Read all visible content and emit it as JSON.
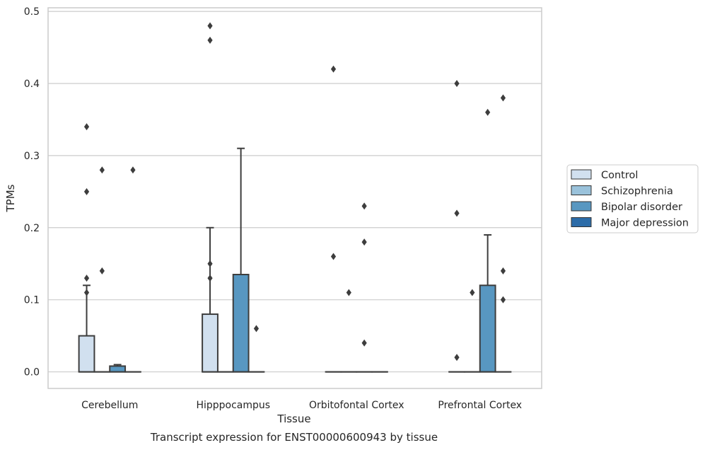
{
  "chart_data": {
    "type": "box",
    "title": "Transcript expression for ENST00000600943 by tissue",
    "xlabel": "Tissue",
    "ylabel": "TPMs",
    "ylim": [
      -0.023,
      0.505
    ],
    "yticks": [
      0.0,
      0.1,
      0.2,
      0.3,
      0.4,
      0.5
    ],
    "ytick_labels": [
      "0.0",
      "0.1",
      "0.2",
      "0.3",
      "0.4",
      "0.5"
    ],
    "categories": [
      "Cerebellum",
      "Hipppocampus",
      "Orbitofontal Cortex",
      "Prefrontal Cortex"
    ],
    "grid": true,
    "legend_position": "center-right",
    "series": [
      {
        "name": "Control",
        "color": "#d1e0ef",
        "boxes": [
          {
            "q1": 0,
            "median": 0,
            "q3": 0.05,
            "whisker_low": 0,
            "whisker_high": 0.12,
            "outliers": [
              0.34,
              0.25,
              0.13,
              0.11
            ]
          },
          {
            "q1": 0,
            "median": 0,
            "q3": 0.08,
            "whisker_low": 0,
            "whisker_high": 0.2,
            "outliers": [
              0.48,
              0.46,
              0.15,
              0.13
            ]
          },
          {
            "q1": 0,
            "median": 0,
            "q3": 0,
            "whisker_low": 0,
            "whisker_high": 0,
            "outliers": [
              0.42,
              0.16
            ]
          },
          {
            "q1": 0,
            "median": 0,
            "q3": 0,
            "whisker_low": 0,
            "whisker_high": 0,
            "outliers": [
              0.4,
              0.22,
              0.02
            ]
          }
        ]
      },
      {
        "name": "Schizophrenia",
        "color": "#9ac2db",
        "boxes": [
          {
            "q1": 0,
            "median": 0,
            "q3": 0,
            "whisker_low": 0,
            "whisker_high": 0,
            "outliers": [
              0.28,
              0.14
            ]
          },
          {
            "q1": 0,
            "median": 0,
            "q3": 0,
            "whisker_low": 0,
            "whisker_high": 0,
            "outliers": []
          },
          {
            "q1": 0,
            "median": 0,
            "q3": 0,
            "whisker_low": 0,
            "whisker_high": 0,
            "outliers": [
              0.11
            ]
          },
          {
            "q1": 0,
            "median": 0,
            "q3": 0,
            "whisker_low": 0,
            "whisker_high": 0,
            "outliers": [
              0.11
            ]
          }
        ]
      },
      {
        "name": "Bipolar disorder",
        "color": "#5897c1",
        "boxes": [
          {
            "q1": 0,
            "median": 0,
            "q3": 0.008,
            "whisker_low": 0,
            "whisker_high": 0.01,
            "outliers": []
          },
          {
            "q1": 0,
            "median": 0,
            "q3": 0.135,
            "whisker_low": 0,
            "whisker_high": 0.31,
            "outliers": []
          },
          {
            "q1": 0,
            "median": 0,
            "q3": 0,
            "whisker_low": 0,
            "whisker_high": 0,
            "outliers": [
              0.23,
              0.18,
              0.04
            ]
          },
          {
            "q1": 0,
            "median": 0,
            "q3": 0.12,
            "whisker_low": 0,
            "whisker_high": 0.19,
            "outliers": [
              0.36
            ]
          }
        ]
      },
      {
        "name": "Major depression",
        "color": "#2c6ca8",
        "boxes": [
          {
            "q1": 0,
            "median": 0,
            "q3": 0,
            "whisker_low": 0,
            "whisker_high": 0,
            "outliers": [
              0.28
            ]
          },
          {
            "q1": 0,
            "median": 0,
            "q3": 0,
            "whisker_low": 0,
            "whisker_high": 0,
            "outliers": [
              0.06
            ]
          },
          {
            "q1": 0,
            "median": 0,
            "q3": 0,
            "whisker_low": 0,
            "whisker_high": 0,
            "outliers": []
          },
          {
            "q1": 0,
            "median": 0,
            "q3": 0,
            "whisker_low": 0,
            "whisker_high": 0,
            "outliers": [
              0.38,
              0.14,
              0.1
            ]
          }
        ]
      }
    ]
  }
}
